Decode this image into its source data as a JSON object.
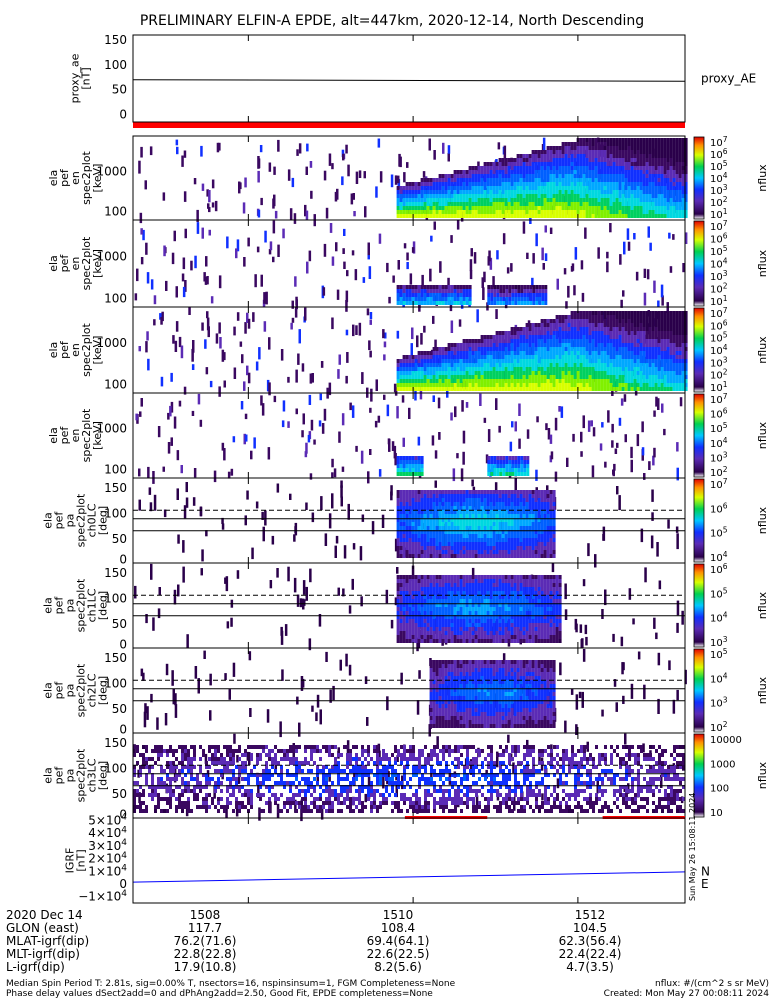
{
  "title": "PRELIMINARY ELFIN-A EPDE, alt=447km, 2020-12-14, North Descending",
  "chart_data": [
    {
      "id": "proxy_ae",
      "type": "line",
      "ylabel": "proxy_ae\n[nT]",
      "yticks": [
        "150",
        "100",
        "50",
        "0"
      ],
      "ylim": [
        -15,
        160
      ],
      "series": [
        {
          "name": "proxy_AE",
          "x": [
            1506.6,
            1513.3
          ],
          "values": [
            70,
            67
          ]
        }
      ]
    },
    {
      "id": "spec-en-1",
      "type": "heatmap",
      "ylabel": "ela\npef\nen\nspec2plot\n[keV]",
      "yscale": "log",
      "yticks": [
        "1000",
        "100"
      ],
      "colorbar": {
        "label": "nflux",
        "ticks": [
          "10^7",
          "10^6",
          "10^5",
          "10^4",
          "10^3",
          "10^2",
          "10^1"
        ]
      }
    },
    {
      "id": "spec-en-2",
      "type": "heatmap",
      "ylabel": "ela\npef\nen\nspec2plot\n[keV]",
      "yscale": "log",
      "yticks": [
        "1000",
        "100"
      ],
      "colorbar": {
        "label": "nflux",
        "ticks": [
          "10^7",
          "10^6",
          "10^5",
          "10^4",
          "10^3",
          "10^2",
          "10^1"
        ]
      }
    },
    {
      "id": "spec-en-3",
      "type": "heatmap",
      "ylabel": "ela\npef\nen\nspec2plot\n[keV]",
      "yscale": "log",
      "yticks": [
        "1000",
        "100"
      ],
      "colorbar": {
        "label": "nflux",
        "ticks": [
          "10^7",
          "10^6",
          "10^5",
          "10^4",
          "10^3",
          "10^2",
          "10^1"
        ]
      }
    },
    {
      "id": "spec-en-4",
      "type": "heatmap",
      "ylabel": "ela\npef\nen\nspec2plot\n[keV]",
      "yscale": "log",
      "yticks": [
        "1000",
        "100"
      ],
      "colorbar": {
        "label": "nflux",
        "ticks": [
          "10^7",
          "10^6",
          "10^5",
          "10^4",
          "10^3",
          "10^2"
        ]
      }
    },
    {
      "id": "pa-ch0",
      "type": "heatmap",
      "ylabel": "ela\npef\npa\nspec2plot\nch0LC\n[deg]",
      "yticks": [
        "150",
        "100",
        "50",
        "0"
      ],
      "colorbar": {
        "label": "nflux",
        "ticks": [
          "10^7",
          "10^6",
          "10^5",
          "10^4"
        ]
      }
    },
    {
      "id": "pa-ch1",
      "type": "heatmap",
      "ylabel": "ela\npef\npa\nspec2plot\nch1LC\n[deg]",
      "yticks": [
        "150",
        "100",
        "50",
        "0"
      ],
      "colorbar": {
        "label": "nflux",
        "ticks": [
          "10^6",
          "10^5",
          "10^4",
          "10^3"
        ]
      }
    },
    {
      "id": "pa-ch2",
      "type": "heatmap",
      "ylabel": "ela\npef\npa\nspec2plot\nch2LC\n[deg]",
      "yticks": [
        "150",
        "100",
        "50",
        "0"
      ],
      "colorbar": {
        "label": "nflux",
        "ticks": [
          "10^5",
          "10^4",
          "10^3",
          "10^2"
        ]
      }
    },
    {
      "id": "pa-ch3",
      "type": "heatmap",
      "ylabel": "ela\npef\npa\nspec2plot\nch3LC\n[deg]",
      "yticks": [
        "150",
        "100",
        "50",
        "0"
      ],
      "colorbar": {
        "label": "nflux",
        "ticks": [
          "10000",
          "1000",
          "100",
          "10"
        ]
      }
    },
    {
      "id": "igrf",
      "type": "line",
      "ylabel": "IGRF\n[nT]",
      "yticks": [
        "5×10^4",
        "4×10^4",
        "3×10^4",
        "2×10^4",
        "1×10^4",
        "0",
        "−1×10^4"
      ],
      "ylim": [
        -15000,
        52000
      ],
      "series": [
        {
          "name": "N",
          "color": "#0000ff",
          "x": [
            1506.6,
            1513.3
          ],
          "values": [
            1500,
            9500
          ]
        },
        {
          "name": "E",
          "color": "#00ff00"
        }
      ]
    }
  ],
  "stamp": "Sun May 26 15:08:11 2024",
  "orbit": {
    "rows": [
      "2020 Dec 14",
      "GLON (east)",
      "MLAT-igrf(dip)",
      "MLT-igrf(dip)",
      "L-igrf(dip)"
    ],
    "ticks": [
      {
        "time": "1508",
        "values": [
          "117.7",
          "76.2(71.6)",
          "22.8(22.8)",
          "17.9(10.8)"
        ]
      },
      {
        "time": "1510",
        "values": [
          "108.4",
          "69.4(64.1)",
          "22.6(22.5)",
          "8.2(5.6)"
        ]
      },
      {
        "time": "1512",
        "values": [
          "104.5",
          "62.3(56.4)",
          "22.4(22.4)",
          "4.7(3.5)"
        ]
      }
    ]
  },
  "notes": {
    "left1": "Median Spin Period T: 2.81s, sig=0.00% T, nsectors=16, nspinsinsum=1, FGM Completeness=None",
    "left2": "Phase delay values dSect2add=0 and dPhAng2add=2.50, Good Fit, EPDE completeness=None",
    "right1": "nflux: #/(cm^2 s sr MeV)",
    "right2": "Created: Mon May 27 00:08:11 2024"
  },
  "colors": {
    "axis": "#000000",
    "n_line": "#0000ff",
    "e_label": "#00ff00",
    "bar_red": "#ff0000"
  }
}
